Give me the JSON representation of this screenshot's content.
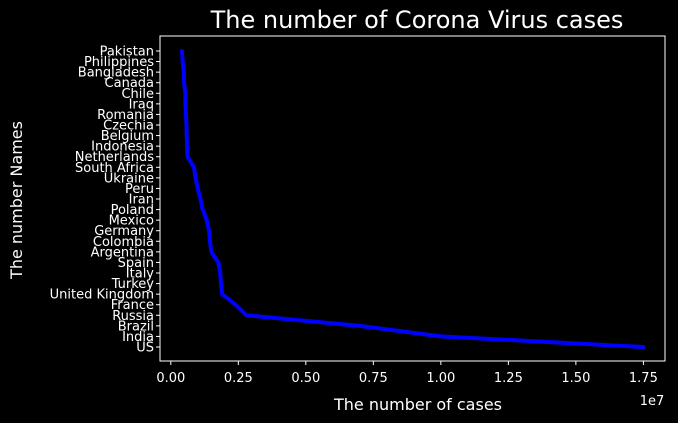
{
  "chart_data": {
    "type": "line",
    "title": "The number of Corona Virus cases",
    "xlabel": "The number of cases",
    "ylabel": "The number Names",
    "x_offset_label": "1e7",
    "xlim": [
      -400000,
      18300000
    ],
    "x_ticks": [
      0,
      2500000,
      5000000,
      7500000,
      10000000,
      12500000,
      15000000,
      17500000
    ],
    "x_tick_labels": [
      "0.00",
      "0.25",
      "0.50",
      "0.75",
      "1.00",
      "1.25",
      "1.50",
      "1.75"
    ],
    "categories": [
      "US",
      "India",
      "Brazil",
      "Russia",
      "France",
      "United Kingdom",
      "Turkey",
      "Italy",
      "Spain",
      "Argentina",
      "Colombia",
      "Germany",
      "Mexico",
      "Poland",
      "Iran",
      "Peru",
      "Ukraine",
      "South Africa",
      "Netherlands",
      "Indonesia",
      "Belgium",
      "Czechia",
      "Romania",
      "Iraq",
      "Chile",
      "Canada",
      "Bangladesh",
      "Philippines",
      "Pakistan"
    ],
    "values": [
      17500000,
      10000000,
      7000000,
      2800000,
      2400000,
      1900000,
      1860000,
      1830000,
      1760000,
      1500000,
      1450000,
      1420000,
      1330000,
      1180000,
      1100000,
      1000000,
      920000,
      860000,
      620000,
      600000,
      590000,
      580000,
      560000,
      540000,
      540000,
      490000,
      480000,
      440000,
      410000
    ],
    "line_color": "#0000ff",
    "grid": false
  }
}
